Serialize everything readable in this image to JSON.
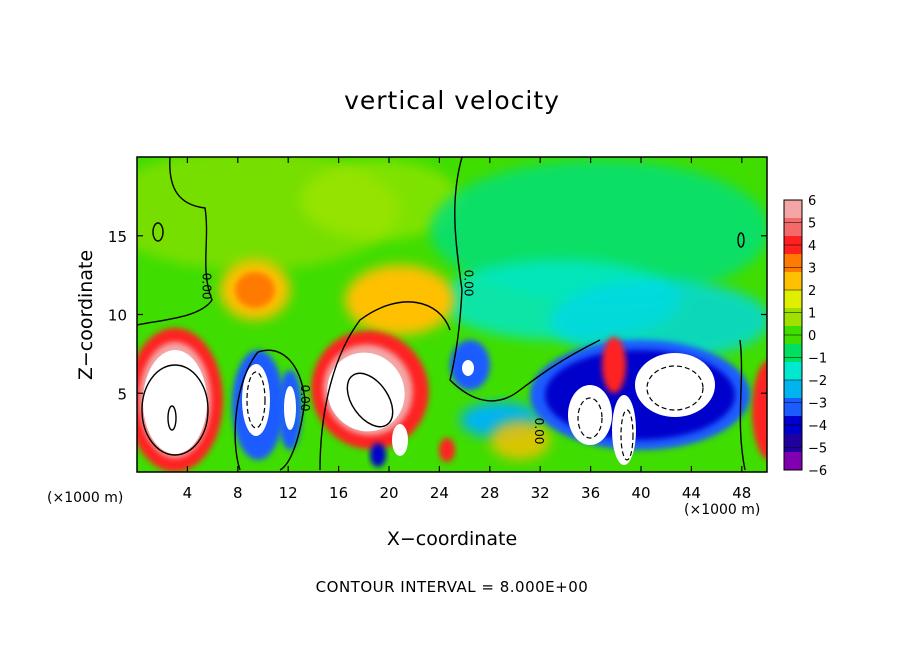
{
  "chart_data": {
    "type": "heatmap",
    "title": "vertical velocity",
    "xlabel": "X−coordinate",
    "ylabel": "Z−coordinate",
    "x_unit": "(×1000 m)",
    "z_unit": "(×1000 m)",
    "xlim": [
      0,
      50
    ],
    "ylim": [
      0,
      20
    ],
    "x_ticks": [
      4,
      8,
      12,
      16,
      20,
      24,
      28,
      32,
      36,
      40,
      44,
      48
    ],
    "y_ticks": [
      5,
      10,
      15
    ],
    "colorbar": {
      "ticks": [
        "6",
        "5",
        "4",
        "3",
        "2",
        "1",
        "0",
        "−1",
        "−2",
        "−3",
        "−4",
        "−5",
        "−6"
      ],
      "range": [
        -6,
        6
      ],
      "colors": [
        "#f4a6a6",
        "#f46a6a",
        "#ff2020",
        "#ff7a00",
        "#ffc000",
        "#e0ee00",
        "#a0e000",
        "#40dd00",
        "#00e060",
        "#00e8d0",
        "#00b4f0",
        "#1a5cff",
        "#0000cc",
        "#2000a0",
        "#8000b0"
      ]
    },
    "contour_labels": [
      {
        "text": "0.00",
        "x": 5.2,
        "z": 11.8,
        "rotation": 90
      },
      {
        "text": "0.00",
        "x": 13.0,
        "z": 4.7,
        "rotation": 90
      },
      {
        "text": "0.00",
        "x": 26.0,
        "z": 12.0,
        "rotation": 90
      },
      {
        "text": "0.00",
        "x": 31.6,
        "z": 2.6,
        "rotation": 90
      }
    ],
    "footnote": "CONTOUR INTERVAL = 8.000E+00"
  }
}
